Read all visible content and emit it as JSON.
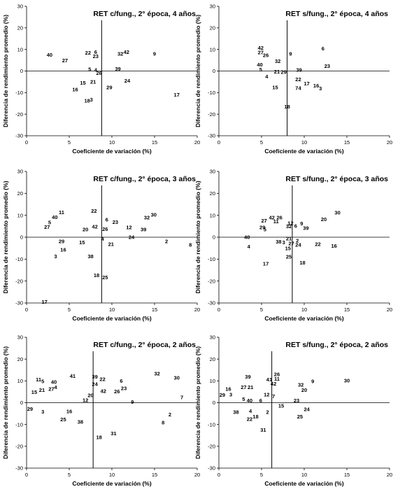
{
  "figure": {
    "xlabel": "Coeficiente de variación (%)",
    "ylabel": "Diferencia de rendimiento promedio (%)",
    "xlim": [
      0,
      20
    ],
    "ylim": [
      -30,
      30
    ],
    "xticks": [
      "0",
      "5",
      "10",
      "15",
      "20"
    ],
    "yticks": [
      "-30",
      "-20",
      "-10",
      "0",
      "10",
      "20",
      "30"
    ]
  },
  "chart_data": [
    {
      "type": "scatter",
      "title": "RET c/fung., 2° época, 4 años",
      "xlabel": "Coeficiente de variación (%)",
      "ylabel": "Diferencia de rendimiento promedio (%)",
      "xlim": [
        0,
        20
      ],
      "ylim": [
        -30,
        30
      ],
      "mean_cv": 8.8,
      "mean_diff": 0,
      "points": [
        {
          "label": "40",
          "x": 2.7,
          "y": 7.5
        },
        {
          "label": "27",
          "x": 4.5,
          "y": 5.0
        },
        {
          "label": "22",
          "x": 7.2,
          "y": 8.5
        },
        {
          "label": "6",
          "x": 8.1,
          "y": 8.8
        },
        {
          "label": "23",
          "x": 8.1,
          "y": 6.8
        },
        {
          "label": "32",
          "x": 11.0,
          "y": 8.0
        },
        {
          "label": "42",
          "x": 11.7,
          "y": 8.9
        },
        {
          "label": "9",
          "x": 15.0,
          "y": 8.0
        },
        {
          "label": "5",
          "x": 7.4,
          "y": 0.8
        },
        {
          "label": "4",
          "x": 8.1,
          "y": 0.5
        },
        {
          "label": "26",
          "x": 8.5,
          "y": -0.9
        },
        {
          "label": "39",
          "x": 10.7,
          "y": 1.0
        },
        {
          "label": "15",
          "x": 6.6,
          "y": -5.5
        },
        {
          "label": "21",
          "x": 7.8,
          "y": -5.0
        },
        {
          "label": "24",
          "x": 11.8,
          "y": -4.5
        },
        {
          "label": "16",
          "x": 5.7,
          "y": -8.5
        },
        {
          "label": "29",
          "x": 9.7,
          "y": -7.5
        },
        {
          "label": "18",
          "x": 7.1,
          "y": -13.7
        },
        {
          "label": "3",
          "x": 7.6,
          "y": -13.2
        },
        {
          "label": "17",
          "x": 17.6,
          "y": -11.0
        }
      ]
    },
    {
      "type": "scatter",
      "title": "RET s/fung., 2° época, 4 años",
      "xlabel": "Coeficiente de variación (%)",
      "ylabel": "Diferencia de rendimiento promedio (%)",
      "xlim": [
        0,
        20
      ],
      "ylim": [
        -30,
        30
      ],
      "mean_cv": 8.0,
      "mean_diff": 0,
      "points": [
        {
          "label": "42",
          "x": 4.9,
          "y": 10.8
        },
        {
          "label": "27",
          "x": 4.9,
          "y": 8.7
        },
        {
          "label": "26",
          "x": 5.5,
          "y": 7.3
        },
        {
          "label": "9",
          "x": 8.4,
          "y": 8.0
        },
        {
          "label": "6",
          "x": 12.2,
          "y": 10.5
        },
        {
          "label": "32",
          "x": 6.9,
          "y": 4.6
        },
        {
          "label": "40",
          "x": 4.8,
          "y": 3.0
        },
        {
          "label": "5",
          "x": 4.9,
          "y": 0.7
        },
        {
          "label": "21",
          "x": 6.8,
          "y": -0.3
        },
        {
          "label": "29",
          "x": 7.6,
          "y": -0.5
        },
        {
          "label": "39",
          "x": 9.4,
          "y": 0.6
        },
        {
          "label": "23",
          "x": 12.7,
          "y": 2.4
        },
        {
          "label": "4",
          "x": 5.6,
          "y": -2.5
        },
        {
          "label": "22",
          "x": 9.3,
          "y": -3.8
        },
        {
          "label": "17",
          "x": 10.3,
          "y": -5.8
        },
        {
          "label": "16",
          "x": 11.4,
          "y": -6.8
        },
        {
          "label": "3",
          "x": 11.9,
          "y": -8.0
        },
        {
          "label": "15",
          "x": 6.6,
          "y": -7.5
        },
        {
          "label": "74",
          "x": 9.3,
          "y": -7.8
        },
        {
          "label": "18",
          "x": 8.0,
          "y": -16.5
        }
      ]
    },
    {
      "type": "scatter",
      "title": "RET c/fung., 2° época, 3 años",
      "xlabel": "Coeficiente de variación (%)",
      "ylabel": "Diferencia de rendimiento promedio (%)",
      "xlim": [
        0,
        20
      ],
      "ylim": [
        -30,
        30
      ],
      "mean_cv": 8.8,
      "mean_diff": 0,
      "points": [
        {
          "label": "11",
          "x": 4.1,
          "y": 11.4
        },
        {
          "label": "40",
          "x": 3.3,
          "y": 9.2
        },
        {
          "label": "5",
          "x": 2.7,
          "y": 6.8
        },
        {
          "label": "27",
          "x": 2.4,
          "y": 4.7
        },
        {
          "label": "22",
          "x": 7.9,
          "y": 12.0
        },
        {
          "label": "6",
          "x": 9.4,
          "y": 8.0
        },
        {
          "label": "23",
          "x": 10.4,
          "y": 7.0
        },
        {
          "label": "32",
          "x": 14.1,
          "y": 9.0
        },
        {
          "label": "30",
          "x": 14.9,
          "y": 10.3
        },
        {
          "label": "42",
          "x": 8.0,
          "y": 4.8
        },
        {
          "label": "20",
          "x": 6.9,
          "y": 3.5
        },
        {
          "label": "26",
          "x": 9.2,
          "y": 3.8
        },
        {
          "label": "12",
          "x": 12.0,
          "y": 4.5
        },
        {
          "label": "39",
          "x": 13.7,
          "y": 3.5
        },
        {
          "label": "24",
          "x": 12.3,
          "y": 0.0
        },
        {
          "label": "4",
          "x": 8.9,
          "y": -0.8
        },
        {
          "label": "2",
          "x": 16.4,
          "y": -1.8
        },
        {
          "label": "8",
          "x": 19.2,
          "y": -3.5
        },
        {
          "label": "29",
          "x": 4.1,
          "y": -1.8
        },
        {
          "label": "15",
          "x": 6.5,
          "y": -2.4
        },
        {
          "label": "21",
          "x": 9.9,
          "y": -3.2
        },
        {
          "label": "16",
          "x": 4.3,
          "y": -5.7
        },
        {
          "label": "3",
          "x": 3.4,
          "y": -8.7
        },
        {
          "label": "38",
          "x": 7.5,
          "y": -8.7
        },
        {
          "label": "18",
          "x": 8.2,
          "y": -17.3
        },
        {
          "label": "25",
          "x": 9.2,
          "y": -18.3
        },
        {
          "label": "17",
          "x": 2.1,
          "y": -29.5
        }
      ]
    },
    {
      "type": "scatter",
      "title": "RET s/fung., 2° época, 3 años",
      "xlabel": "Coeficiente de variación (%)",
      "ylabel": "Diferencia de rendimiento promedio (%)",
      "xlim": [
        0,
        20
      ],
      "ylim": [
        -30,
        30
      ],
      "mean_cv": 8.6,
      "mean_diff": 0,
      "points": [
        {
          "label": "42",
          "x": 6.2,
          "y": 9.0
        },
        {
          "label": "26",
          "x": 7.1,
          "y": 9.0
        },
        {
          "label": "27",
          "x": 5.3,
          "y": 7.5
        },
        {
          "label": "11",
          "x": 6.7,
          "y": 7.2
        },
        {
          "label": "30",
          "x": 13.9,
          "y": 11.2
        },
        {
          "label": "20",
          "x": 12.3,
          "y": 8.2
        },
        {
          "label": "12",
          "x": 8.4,
          "y": 6.5
        },
        {
          "label": "9",
          "x": 9.7,
          "y": 6.3
        },
        {
          "label": "32",
          "x": 8.2,
          "y": 5.0
        },
        {
          "label": "6",
          "x": 9.0,
          "y": 5.1
        },
        {
          "label": "39",
          "x": 10.2,
          "y": 4.2
        },
        {
          "label": "29",
          "x": 5.1,
          "y": 4.6
        },
        {
          "label": "5",
          "x": 5.4,
          "y": 3.6
        },
        {
          "label": "40",
          "x": 3.3,
          "y": 0.0
        },
        {
          "label": "21",
          "x": 8.2,
          "y": -0.5
        },
        {
          "label": "38",
          "x": 7.0,
          "y": -2.0
        },
        {
          "label": "3",
          "x": 7.6,
          "y": -2.3
        },
        {
          "label": "27",
          "x": 8.5,
          "y": -2.8
        },
        {
          "label": "2",
          "x": 9.2,
          "y": -1.5
        },
        {
          "label": "24",
          "x": 9.3,
          "y": -3.4
        },
        {
          "label": "22",
          "x": 11.6,
          "y": -3.2
        },
        {
          "label": "16",
          "x": 13.5,
          "y": -3.9
        },
        {
          "label": "4",
          "x": 3.5,
          "y": -4.2
        },
        {
          "label": "15",
          "x": 8.1,
          "y": -5.0
        },
        {
          "label": "25",
          "x": 8.2,
          "y": -8.8
        },
        {
          "label": "17",
          "x": 5.5,
          "y": -12.0
        },
        {
          "label": "18",
          "x": 9.8,
          "y": -11.6
        }
      ]
    },
    {
      "type": "scatter",
      "title": "RET c/fung., 2° época, 2 años",
      "xlabel": "Coeficiente de variación (%)",
      "ylabel": "Diferencia de rendimiento promedio (%)",
      "xlim": [
        0,
        20
      ],
      "ylim": [
        -30,
        30
      ],
      "mean_cv": 7.8,
      "mean_diff": 0,
      "points": [
        {
          "label": "11",
          "x": 1.4,
          "y": 10.6
        },
        {
          "label": "5",
          "x": 1.9,
          "y": 9.8
        },
        {
          "label": "40",
          "x": 3.2,
          "y": 9.6
        },
        {
          "label": "41",
          "x": 5.4,
          "y": 12.3
        },
        {
          "label": "39",
          "x": 8.0,
          "y": 12.0
        },
        {
          "label": "22",
          "x": 8.9,
          "y": 10.8
        },
        {
          "label": "6",
          "x": 11.1,
          "y": 10.0
        },
        {
          "label": "32",
          "x": 15.3,
          "y": 13.3
        },
        {
          "label": "30",
          "x": 17.6,
          "y": 11.5
        },
        {
          "label": "24",
          "x": 8.0,
          "y": 8.5
        },
        {
          "label": "23",
          "x": 11.4,
          "y": 6.6
        },
        {
          "label": "21",
          "x": 1.8,
          "y": 5.9
        },
        {
          "label": "27",
          "x": 2.9,
          "y": 6.3
        },
        {
          "label": "4",
          "x": 3.4,
          "y": 7.1
        },
        {
          "label": "15",
          "x": 0.9,
          "y": 4.8
        },
        {
          "label": "42",
          "x": 9.0,
          "y": 5.4
        },
        {
          "label": "26",
          "x": 10.6,
          "y": 5.2
        },
        {
          "label": "20",
          "x": 7.5,
          "y": 3.4
        },
        {
          "label": "12",
          "x": 6.9,
          "y": 1.2
        },
        {
          "label": "9",
          "x": 12.4,
          "y": 0.4
        },
        {
          "label": "7",
          "x": 18.2,
          "y": 2.4
        },
        {
          "label": "29",
          "x": 0.4,
          "y": -2.9
        },
        {
          "label": "3",
          "x": 1.9,
          "y": -4.1
        },
        {
          "label": "16",
          "x": 5.0,
          "y": -4.0
        },
        {
          "label": "2",
          "x": 16.8,
          "y": -5.4
        },
        {
          "label": "25",
          "x": 4.3,
          "y": -7.6
        },
        {
          "label": "38",
          "x": 6.3,
          "y": -8.8
        },
        {
          "label": "8",
          "x": 16.0,
          "y": -9.0
        },
        {
          "label": "31",
          "x": 10.2,
          "y": -14.0
        },
        {
          "label": "18",
          "x": 8.5,
          "y": -15.8
        }
      ]
    },
    {
      "type": "scatter",
      "title": "RET s/fung., 2° época, 2 años",
      "xlabel": "Coeficiente de variación (%)",
      "ylabel": "Diferencia de rendimiento promedio (%)",
      "xlim": [
        0,
        20
      ],
      "ylim": [
        -30,
        30
      ],
      "mean_cv": 6.2,
      "mean_diff": 0,
      "points": [
        {
          "label": "39",
          "x": 3.4,
          "y": 12.0
        },
        {
          "label": "26",
          "x": 6.8,
          "y": 13.0
        },
        {
          "label": "41",
          "x": 5.9,
          "y": 10.6
        },
        {
          "label": "11",
          "x": 6.8,
          "y": 10.9
        },
        {
          "label": "42",
          "x": 6.4,
          "y": 8.8
        },
        {
          "label": "9",
          "x": 11.0,
          "y": 9.8
        },
        {
          "label": "30",
          "x": 15.0,
          "y": 10.2
        },
        {
          "label": "32",
          "x": 9.6,
          "y": 8.2
        },
        {
          "label": "16",
          "x": 1.1,
          "y": 6.4
        },
        {
          "label": "27",
          "x": 2.9,
          "y": 7.1
        },
        {
          "label": "21",
          "x": 3.7,
          "y": 7.1
        },
        {
          "label": "20",
          "x": 10.0,
          "y": 5.8
        },
        {
          "label": "29",
          "x": 0.4,
          "y": 3.6
        },
        {
          "label": "3",
          "x": 1.4,
          "y": 3.8
        },
        {
          "label": "12",
          "x": 5.6,
          "y": 3.7
        },
        {
          "label": "7",
          "x": 6.4,
          "y": 2.9
        },
        {
          "label": "5",
          "x": 2.9,
          "y": 1.6
        },
        {
          "label": "40",
          "x": 3.6,
          "y": 1.1
        },
        {
          "label": "6",
          "x": 4.9,
          "y": 1.0
        },
        {
          "label": "23",
          "x": 9.1,
          "y": 1.0
        },
        {
          "label": "15",
          "x": 7.3,
          "y": -1.4
        },
        {
          "label": "38",
          "x": 2.0,
          "y": -4.2
        },
        {
          "label": "4",
          "x": 3.7,
          "y": -3.8
        },
        {
          "label": "2",
          "x": 5.7,
          "y": -4.2
        },
        {
          "label": "24",
          "x": 10.3,
          "y": -3.0
        },
        {
          "label": "18",
          "x": 4.3,
          "y": -6.4
        },
        {
          "label": "22",
          "x": 3.6,
          "y": -7.4
        },
        {
          "label": "25",
          "x": 9.5,
          "y": -6.4
        },
        {
          "label": "31",
          "x": 5.2,
          "y": -12.5
        }
      ]
    }
  ]
}
